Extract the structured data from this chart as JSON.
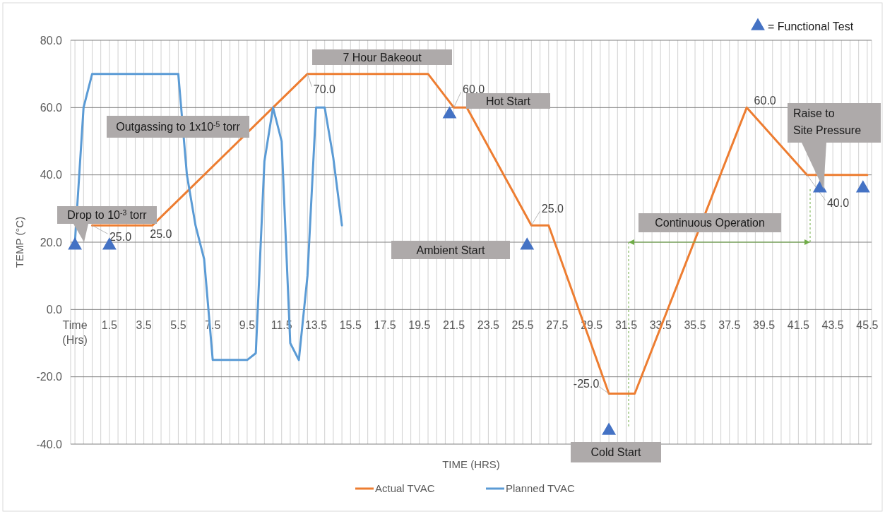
{
  "chart_data": {
    "type": "line",
    "xlabel": "TIME (HRS)",
    "ylabel": "TEMP (°C)",
    "xlim": [
      -0.75,
      45.75
    ],
    "ylim": [
      -40,
      80
    ],
    "xticks": [
      {
        "value": -0.75,
        "label": null
      },
      {
        "value": -0.5,
        "label": "Time (Hrs)"
      },
      {
        "value": 0,
        "label": null
      },
      {
        "value": 0.5,
        "label": null
      },
      {
        "value": 1,
        "label": null
      },
      1.5,
      {
        "value": 2,
        "label": null
      },
      {
        "value": 2.5,
        "label": null
      },
      {
        "value": 3,
        "label": null
      },
      3.5,
      {
        "value": 4,
        "label": null
      },
      {
        "value": 4.5,
        "label": null
      },
      {
        "value": 5,
        "label": null
      },
      5.5,
      {
        "value": 6,
        "label": null
      },
      {
        "value": 6.5,
        "label": null
      },
      {
        "value": 7,
        "label": null
      },
      7.5,
      {
        "value": 8,
        "label": null
      },
      {
        "value": 8.5,
        "label": null
      },
      {
        "value": 9,
        "label": null
      },
      9.5,
      {
        "value": 10,
        "label": null
      },
      {
        "value": 10.5,
        "label": null
      },
      {
        "value": 11,
        "label": null
      },
      11.5,
      {
        "value": 12,
        "label": null
      },
      {
        "value": 12.5,
        "label": null
      },
      {
        "value": 13,
        "label": null
      },
      13.5,
      {
        "value": 14,
        "label": null
      },
      {
        "value": 14.5,
        "label": null
      },
      {
        "value": 15,
        "label": null
      },
      15.5,
      {
        "value": 16,
        "label": null
      },
      {
        "value": 16.5,
        "label": null
      },
      {
        "value": 17,
        "label": null
      },
      17.5,
      {
        "value": 18,
        "label": null
      },
      {
        "value": 18.5,
        "label": null
      },
      {
        "value": 19,
        "label": null
      },
      19.5,
      {
        "value": 20,
        "label": null
      },
      {
        "value": 20.5,
        "label": null
      },
      {
        "value": 21,
        "label": null
      },
      21.5,
      {
        "value": 22,
        "label": null
      },
      {
        "value": 22.5,
        "label": null
      },
      {
        "value": 23,
        "label": null
      },
      23.5,
      {
        "value": 24,
        "label": null
      },
      {
        "value": 24.5,
        "label": null
      },
      {
        "value": 25,
        "label": null
      },
      25.5,
      {
        "value": 26,
        "label": null
      },
      {
        "value": 26.5,
        "label": null
      },
      {
        "value": 27,
        "label": null
      },
      27.5,
      {
        "value": 28,
        "label": null
      },
      {
        "value": 28.5,
        "label": null
      },
      {
        "value": 29,
        "label": null
      },
      29.5,
      {
        "value": 30,
        "label": null
      },
      {
        "value": 30.5,
        "label": null
      },
      {
        "value": 31,
        "label": null
      },
      31.5,
      {
        "value": 32,
        "label": null
      },
      {
        "value": 32.5,
        "label": null
      },
      {
        "value": 33,
        "label": null
      },
      33.5,
      {
        "value": 34,
        "label": null
      },
      {
        "value": 34.5,
        "label": null
      },
      {
        "value": 35,
        "label": null
      },
      35.5,
      {
        "value": 36,
        "label": null
      },
      {
        "value": 36.5,
        "label": null
      },
      {
        "value": 37,
        "label": null
      },
      37.5,
      {
        "value": 38,
        "label": null
      },
      {
        "value": 38.5,
        "label": null
      },
      {
        "value": 39,
        "label": null
      },
      39.5,
      {
        "value": 40,
        "label": null
      },
      {
        "value": 40.5,
        "label": null
      },
      {
        "value": 41,
        "label": null
      },
      41.5,
      {
        "value": 42,
        "label": null
      },
      {
        "value": 42.5,
        "label": null
      },
      {
        "value": 43,
        "label": null
      },
      43.5,
      {
        "value": 44,
        "label": null
      },
      {
        "value": 44.5,
        "label": null
      },
      {
        "value": 45,
        "label": null
      },
      45.5,
      {
        "value": 45.75,
        "label": null
      }
    ],
    "yticks": [
      {
        "value": -40,
        "label": "-40.0"
      },
      {
        "value": -20,
        "label": "-20.0"
      },
      {
        "value": 0,
        "label": "0.0"
      },
      {
        "value": 20,
        "label": "20.0"
      },
      {
        "value": 40,
        "label": "40.0"
      },
      {
        "value": 60,
        "label": "60.0"
      },
      {
        "value": 80,
        "label": "80.0"
      }
    ],
    "grid": true,
    "legend": "bottom",
    "series": [
      {
        "name": "Actual TVAC",
        "type": "line",
        "color": "#ed7d31",
        "x": [
          0.5,
          4,
          13,
          20,
          21.5,
          22.25,
          26,
          27,
          30.5,
          32,
          38.5,
          42,
          45.5
        ],
        "values": [
          25,
          25,
          70,
          70,
          60,
          60,
          25,
          25,
          -25,
          -25,
          60,
          40,
          40
        ],
        "value_labels": [
          "25.0",
          "25.0",
          "70.0",
          null,
          "60.0",
          null,
          "25.0",
          null,
          "-25.0",
          null,
          "60.0",
          "40.0",
          null
        ]
      },
      {
        "name": "Planned TVAC",
        "type": "line",
        "color": "#5b9bd5",
        "x": [
          -0.5,
          0,
          0.5,
          5.5,
          6,
          6.5,
          7,
          7.5,
          9.5,
          10,
          10.5,
          11,
          11.5,
          12,
          12.5,
          13,
          13.5,
          14,
          14.5,
          15
        ],
        "values": [
          20,
          60,
          70,
          70,
          40,
          25,
          15,
          -15,
          -15,
          -13,
          44,
          60,
          50,
          -10,
          -15,
          10,
          60,
          60,
          45,
          25
        ]
      },
      {
        "name": "= Functional Test",
        "type": "scatter",
        "marker": "triangle",
        "color": "#4472c4",
        "x": [
          -0.5,
          1.5,
          21.25,
          25.75,
          30.5,
          42.75,
          45.25
        ],
        "values": [
          19,
          19,
          58,
          19,
          -36,
          36,
          36
        ]
      }
    ],
    "annotations": [
      "Drop to 10$^{-3}$ torr",
      "Outgassing to 1x10$^{-5}$ torr",
      "7 Hour Bakeout",
      "Hot Start",
      "Ambient Start",
      "Continuous Operation",
      "Raise to Site Pressure",
      "Cold Start"
    ]
  }
}
